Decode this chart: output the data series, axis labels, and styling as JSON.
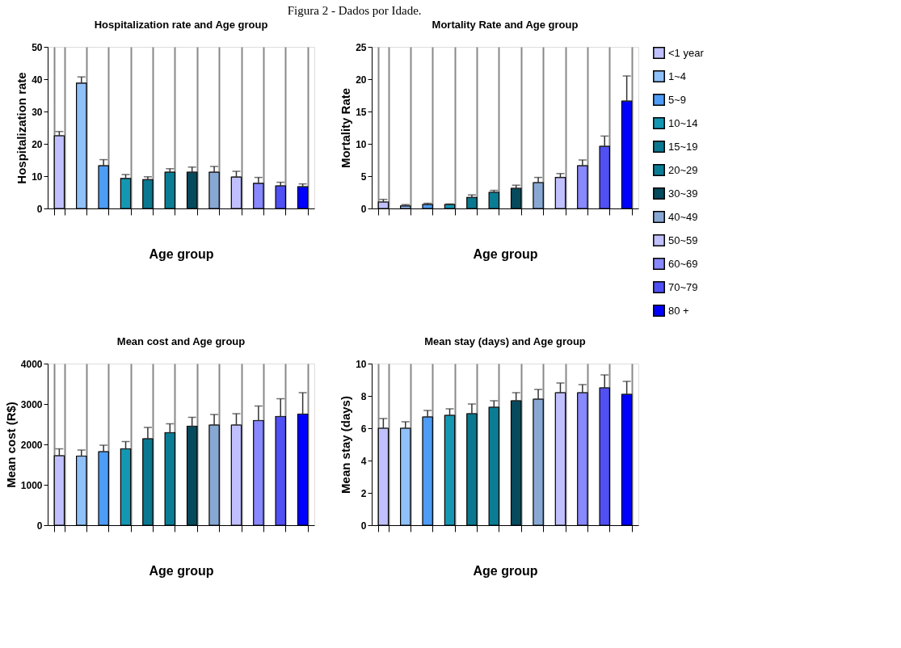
{
  "chart_data": [
    {
      "type": "bar",
      "title": "Hospitalization rate and Age group",
      "xlabel": "Age group",
      "ylabel": "Hospitalization rate",
      "annotations": [
        "Figura 2 - Dados por Idade."
      ],
      "categories": [
        null,
        null,
        null,
        null,
        null,
        null,
        null,
        null,
        null,
        null,
        null,
        null
      ],
      "series": [
        {
          "color": "#c0c0ff",
          "values": [
            22.5,
            null,
            null,
            null,
            null,
            null,
            null,
            null,
            null,
            null,
            null,
            null
          ],
          "errors": [
            [
              22.5,
              23.8
            ],
            null,
            null,
            null,
            null,
            null,
            null,
            null,
            null,
            null,
            null,
            null
          ]
        },
        {
          "color": "#90c0f8",
          "values": [
            null,
            38.8,
            null,
            null,
            null,
            null,
            null,
            null,
            null,
            null,
            null,
            null
          ],
          "errors": [
            null,
            [
              38.8,
              40.7
            ],
            null,
            null,
            null,
            null,
            null,
            null,
            null,
            null,
            null,
            null
          ]
        },
        {
          "color": "#4d9cf5",
          "values": [
            null,
            null,
            13.2,
            null,
            null,
            null,
            null,
            null,
            null,
            null,
            null,
            null
          ],
          "errors": [
            null,
            null,
            [
              13.2,
              15.1
            ],
            null,
            null,
            null,
            null,
            null,
            null,
            null,
            null,
            null
          ]
        },
        {
          "color": "#1497b3",
          "values": [
            null,
            null,
            null,
            9.3,
            null,
            null,
            null,
            null,
            null,
            null,
            null,
            null
          ],
          "errors": [
            null,
            null,
            null,
            [
              9.3,
              10.5
            ],
            null,
            null,
            null,
            null,
            null,
            null,
            null,
            null
          ]
        },
        {
          "color": "#0a7890",
          "values": [
            null,
            null,
            null,
            null,
            8.9,
            null,
            null,
            null,
            null,
            null,
            null,
            null
          ],
          "errors": [
            null,
            null,
            null,
            null,
            [
              8.9,
              9.8
            ],
            null,
            null,
            null,
            null,
            null,
            null,
            null
          ]
        },
        {
          "color": "#0a7d94",
          "values": [
            null,
            null,
            null,
            null,
            null,
            11.2,
            null,
            null,
            null,
            null,
            null,
            null
          ],
          "errors": [
            null,
            null,
            null,
            null,
            null,
            [
              11.2,
              12.3
            ],
            null,
            null,
            null,
            null,
            null,
            null
          ]
        },
        {
          "color": "#064a5e",
          "values": [
            null,
            null,
            null,
            null,
            null,
            null,
            11.2,
            null,
            null,
            null,
            null,
            null
          ],
          "errors": [
            null,
            null,
            null,
            null,
            null,
            null,
            [
              11.2,
              12.8
            ],
            null,
            null,
            null,
            null,
            null
          ]
        },
        {
          "color": "#88a8d4",
          "values": [
            null,
            null,
            null,
            null,
            null,
            null,
            null,
            11.2,
            null,
            null,
            null,
            null
          ],
          "errors": [
            null,
            null,
            null,
            null,
            null,
            null,
            null,
            [
              11.2,
              13.0
            ],
            null,
            null,
            null,
            null
          ]
        },
        {
          "color": "#c0c0ff",
          "values": [
            null,
            null,
            null,
            null,
            null,
            null,
            null,
            null,
            9.7,
            null,
            null,
            null
          ],
          "errors": [
            null,
            null,
            null,
            null,
            null,
            null,
            null,
            null,
            [
              9.7,
              11.5
            ],
            null,
            null,
            null
          ]
        },
        {
          "color": "#8888ff",
          "values": [
            null,
            null,
            null,
            null,
            null,
            null,
            null,
            null,
            null,
            7.8,
            null,
            null
          ],
          "errors": [
            null,
            null,
            null,
            null,
            null,
            null,
            null,
            null,
            null,
            [
              7.8,
              9.6
            ],
            null,
            null
          ]
        },
        {
          "color": "#5050f5",
          "values": [
            null,
            null,
            null,
            null,
            null,
            null,
            null,
            null,
            null,
            null,
            7.0,
            null
          ],
          "errors": [
            null,
            null,
            null,
            null,
            null,
            null,
            null,
            null,
            null,
            null,
            [
              7.0,
              8.1
            ],
            null
          ]
        },
        {
          "color": "#0000ff",
          "values": [
            null,
            null,
            null,
            null,
            null,
            null,
            null,
            null,
            null,
            null,
            null,
            6.7
          ],
          "errors": [
            null,
            null,
            null,
            null,
            null,
            null,
            null,
            null,
            null,
            null,
            null,
            [
              6.7,
              7.6
            ]
          ]
        }
      ],
      "ylim": [
        0,
        50
      ],
      "yticks": [
        0,
        10,
        20,
        30,
        40,
        50
      ],
      "grid": "x",
      "tick_labels": "y"
    },
    {
      "type": "bar",
      "title": "Mortality Rate and Age group",
      "xlabel": "Age group",
      "ylabel": "Mortality Rate",
      "categories": [
        null,
        null,
        null,
        null,
        null,
        null,
        null,
        null,
        null,
        null,
        null,
        null
      ],
      "series": [
        {
          "name": "<1 year",
          "color": "#c0c0ff",
          "values": [
            1.0,
            null,
            null,
            null,
            null,
            null,
            null,
            null,
            null,
            null,
            null,
            null
          ],
          "errors": [
            [
              1.0,
              1.4
            ],
            null,
            null,
            null,
            null,
            null,
            null,
            null,
            null,
            null,
            null,
            null
          ]
        },
        {
          "name": "1~4",
          "color": "#90c0f8",
          "values": [
            null,
            0.4,
            null,
            null,
            null,
            null,
            null,
            null,
            null,
            null,
            null,
            null
          ],
          "errors": [
            null,
            [
              0.4,
              0.6
            ],
            null,
            null,
            null,
            null,
            null,
            null,
            null,
            null,
            null,
            null
          ]
        },
        {
          "name": "5~9",
          "color": "#4d9cf5",
          "values": [
            null,
            null,
            0.6,
            null,
            null,
            null,
            null,
            null,
            null,
            null,
            null,
            null
          ],
          "errors": [
            null,
            null,
            [
              0.6,
              0.8
            ],
            null,
            null,
            null,
            null,
            null,
            null,
            null,
            null,
            null
          ]
        },
        {
          "name": "10~14",
          "color": "#1497b3",
          "values": [
            null,
            null,
            null,
            0.6,
            null,
            null,
            null,
            null,
            null,
            null,
            null,
            null
          ],
          "errors": [
            null,
            null,
            null,
            [
              0.6,
              0.7
            ],
            null,
            null,
            null,
            null,
            null,
            null,
            null,
            null
          ]
        },
        {
          "name": "15~19",
          "color": "#0a7890",
          "values": [
            null,
            null,
            null,
            null,
            1.7,
            null,
            null,
            null,
            null,
            null,
            null,
            null
          ],
          "errors": [
            null,
            null,
            null,
            null,
            [
              1.7,
              2.1
            ],
            null,
            null,
            null,
            null,
            null,
            null,
            null
          ]
        },
        {
          "name": "20~29",
          "color": "#0a7d94",
          "values": [
            null,
            null,
            null,
            null,
            null,
            2.5,
            null,
            null,
            null,
            null,
            null,
            null
          ],
          "errors": [
            null,
            null,
            null,
            null,
            null,
            [
              2.5,
              2.8
            ],
            null,
            null,
            null,
            null,
            null,
            null
          ]
        },
        {
          "name": "30~39",
          "color": "#064a5e",
          "values": [
            null,
            null,
            null,
            null,
            null,
            null,
            3.1,
            null,
            null,
            null,
            null,
            null
          ],
          "errors": [
            null,
            null,
            null,
            null,
            null,
            null,
            [
              3.1,
              3.6
            ],
            null,
            null,
            null,
            null,
            null
          ]
        },
        {
          "name": "40~49",
          "color": "#88a8d4",
          "values": [
            null,
            null,
            null,
            null,
            null,
            null,
            null,
            4.0,
            null,
            null,
            null,
            null
          ],
          "errors": [
            null,
            null,
            null,
            null,
            null,
            null,
            null,
            [
              4.0,
              4.8
            ],
            null,
            null,
            null,
            null
          ]
        },
        {
          "name": "50~59",
          "color": "#c0c0ff",
          "values": [
            null,
            null,
            null,
            null,
            null,
            null,
            null,
            null,
            4.8,
            null,
            null,
            null
          ],
          "errors": [
            null,
            null,
            null,
            null,
            null,
            null,
            null,
            null,
            [
              4.8,
              5.4
            ],
            null,
            null,
            null
          ]
        },
        {
          "name": "60~69",
          "color": "#8888ff",
          "values": [
            null,
            null,
            null,
            null,
            null,
            null,
            null,
            null,
            null,
            6.6,
            null,
            null
          ],
          "errors": [
            null,
            null,
            null,
            null,
            null,
            null,
            null,
            null,
            null,
            [
              6.6,
              7.5
            ],
            null,
            null
          ]
        },
        {
          "name": "70~79",
          "color": "#5050f5",
          "values": [
            null,
            null,
            null,
            null,
            null,
            null,
            null,
            null,
            null,
            null,
            9.6,
            null
          ],
          "errors": [
            null,
            null,
            null,
            null,
            null,
            null,
            null,
            null,
            null,
            null,
            [
              9.6,
              11.2
            ],
            null
          ]
        },
        {
          "name": "80 +",
          "color": "#0000ff",
          "values": [
            null,
            null,
            null,
            null,
            null,
            null,
            null,
            null,
            null,
            null,
            null,
            16.6
          ],
          "errors": [
            null,
            null,
            null,
            null,
            null,
            null,
            null,
            null,
            null,
            null,
            null,
            [
              16.6,
              20.5
            ]
          ]
        }
      ],
      "ylim": [
        0,
        25
      ],
      "yticks": [
        0,
        5,
        10,
        15,
        20,
        25
      ],
      "grid": "x",
      "tick_labels": "y",
      "legend": "right"
    },
    {
      "type": "bar",
      "title": "Mean cost and Age group",
      "xlabel": "Age group",
      "ylabel": "Mean cost (R$)",
      "categories": [
        null,
        null,
        null,
        null,
        null,
        null,
        null,
        null,
        null,
        null,
        null,
        null
      ],
      "series": [
        {
          "color": "#c0c0ff",
          "values": [
            1720,
            null,
            null,
            null,
            null,
            null,
            null,
            null,
            null,
            null,
            null,
            null
          ],
          "errors": [
            [
              1720,
              1890
            ],
            null,
            null,
            null,
            null,
            null,
            null,
            null,
            null,
            null,
            null,
            null
          ]
        },
        {
          "color": "#90c0f8",
          "values": [
            null,
            1710,
            null,
            null,
            null,
            null,
            null,
            null,
            null,
            null,
            null,
            null
          ],
          "errors": [
            null,
            [
              1710,
              1860
            ],
            null,
            null,
            null,
            null,
            null,
            null,
            null,
            null,
            null,
            null
          ]
        },
        {
          "color": "#4d9cf5",
          "values": [
            null,
            null,
            1820,
            null,
            null,
            null,
            null,
            null,
            null,
            null,
            null,
            null
          ],
          "errors": [
            null,
            null,
            [
              1820,
              1980
            ],
            null,
            null,
            null,
            null,
            null,
            null,
            null,
            null,
            null
          ]
        },
        {
          "color": "#1497b3",
          "values": [
            null,
            null,
            null,
            1890,
            null,
            null,
            null,
            null,
            null,
            null,
            null,
            null
          ],
          "errors": [
            null,
            null,
            null,
            [
              1890,
              2070
            ],
            null,
            null,
            null,
            null,
            null,
            null,
            null,
            null
          ]
        },
        {
          "color": "#0a7890",
          "values": [
            null,
            null,
            null,
            null,
            2140,
            null,
            null,
            null,
            null,
            null,
            null,
            null
          ],
          "errors": [
            null,
            null,
            null,
            null,
            [
              2140,
              2420
            ],
            null,
            null,
            null,
            null,
            null,
            null,
            null
          ]
        },
        {
          "color": "#0a7d94",
          "values": [
            null,
            null,
            null,
            null,
            null,
            2290,
            null,
            null,
            null,
            null,
            null,
            null
          ],
          "errors": [
            null,
            null,
            null,
            null,
            null,
            [
              2290,
              2510
            ],
            null,
            null,
            null,
            null,
            null,
            null
          ]
        },
        {
          "color": "#064a5e",
          "values": [
            null,
            null,
            null,
            null,
            null,
            null,
            2450,
            null,
            null,
            null,
            null,
            null
          ],
          "errors": [
            null,
            null,
            null,
            null,
            null,
            null,
            [
              2450,
              2670
            ],
            null,
            null,
            null,
            null,
            null
          ]
        },
        {
          "color": "#88a8d4",
          "values": [
            null,
            null,
            null,
            null,
            null,
            null,
            null,
            2480,
            null,
            null,
            null,
            null
          ],
          "errors": [
            null,
            null,
            null,
            null,
            null,
            null,
            null,
            [
              2480,
              2740
            ],
            null,
            null,
            null,
            null
          ]
        },
        {
          "color": "#c0c0ff",
          "values": [
            null,
            null,
            null,
            null,
            null,
            null,
            null,
            null,
            2480,
            null,
            null,
            null
          ],
          "errors": [
            null,
            null,
            null,
            null,
            null,
            null,
            null,
            null,
            [
              2480,
              2760
            ],
            null,
            null,
            null
          ]
        },
        {
          "color": "#8888ff",
          "values": [
            null,
            null,
            null,
            null,
            null,
            null,
            null,
            null,
            null,
            2590,
            null,
            null
          ],
          "errors": [
            null,
            null,
            null,
            null,
            null,
            null,
            null,
            null,
            null,
            [
              2590,
              2950
            ],
            null,
            null
          ]
        },
        {
          "color": "#5050f5",
          "values": [
            null,
            null,
            null,
            null,
            null,
            null,
            null,
            null,
            null,
            null,
            2690,
            null
          ],
          "errors": [
            null,
            null,
            null,
            null,
            null,
            null,
            null,
            null,
            null,
            null,
            [
              2690,
              3130
            ],
            null
          ]
        },
        {
          "color": "#0000ff",
          "values": [
            null,
            null,
            null,
            null,
            null,
            null,
            null,
            null,
            null,
            null,
            null,
            2750
          ],
          "errors": [
            null,
            null,
            null,
            null,
            null,
            null,
            null,
            null,
            null,
            null,
            null,
            [
              2750,
              3280
            ]
          ]
        }
      ],
      "ylim": [
        0,
        4000
      ],
      "yticks": [
        0,
        1000,
        2000,
        3000,
        4000
      ],
      "grid": "x",
      "tick_labels": "y"
    },
    {
      "type": "bar",
      "title": "Mean stay (days) and Age group",
      "xlabel": "Age group",
      "ylabel": "Mean stay (days)",
      "categories": [
        null,
        null,
        null,
        null,
        null,
        null,
        null,
        null,
        null,
        null,
        null,
        null
      ],
      "series": [
        {
          "color": "#c0c0ff",
          "values": [
            6.0,
            null,
            null,
            null,
            null,
            null,
            null,
            null,
            null,
            null,
            null,
            null
          ],
          "errors": [
            [
              6.0,
              6.6
            ],
            null,
            null,
            null,
            null,
            null,
            null,
            null,
            null,
            null,
            null,
            null
          ]
        },
        {
          "color": "#90c0f8",
          "values": [
            null,
            6.0,
            null,
            null,
            null,
            null,
            null,
            null,
            null,
            null,
            null,
            null
          ],
          "errors": [
            null,
            [
              6.0,
              6.4
            ],
            null,
            null,
            null,
            null,
            null,
            null,
            null,
            null,
            null,
            null
          ]
        },
        {
          "color": "#4d9cf5",
          "values": [
            null,
            null,
            6.7,
            null,
            null,
            null,
            null,
            null,
            null,
            null,
            null,
            null
          ],
          "errors": [
            null,
            null,
            [
              6.7,
              7.1
            ],
            null,
            null,
            null,
            null,
            null,
            null,
            null,
            null,
            null
          ]
        },
        {
          "color": "#1497b3",
          "values": [
            null,
            null,
            null,
            6.8,
            null,
            null,
            null,
            null,
            null,
            null,
            null,
            null
          ],
          "errors": [
            null,
            null,
            null,
            [
              6.8,
              7.2
            ],
            null,
            null,
            null,
            null,
            null,
            null,
            null,
            null
          ]
        },
        {
          "color": "#0a7890",
          "values": [
            null,
            null,
            null,
            null,
            6.9,
            null,
            null,
            null,
            null,
            null,
            null,
            null
          ],
          "errors": [
            null,
            null,
            null,
            null,
            [
              6.9,
              7.5
            ],
            null,
            null,
            null,
            null,
            null,
            null,
            null
          ]
        },
        {
          "color": "#0a7d94",
          "values": [
            null,
            null,
            null,
            null,
            null,
            7.3,
            null,
            null,
            null,
            null,
            null,
            null
          ],
          "errors": [
            null,
            null,
            null,
            null,
            null,
            [
              7.3,
              7.7
            ],
            null,
            null,
            null,
            null,
            null,
            null
          ]
        },
        {
          "color": "#064a5e",
          "values": [
            null,
            null,
            null,
            null,
            null,
            null,
            7.7,
            null,
            null,
            null,
            null,
            null
          ],
          "errors": [
            null,
            null,
            null,
            null,
            null,
            null,
            [
              7.7,
              8.2
            ],
            null,
            null,
            null,
            null,
            null
          ]
        },
        {
          "color": "#88a8d4",
          "values": [
            null,
            null,
            null,
            null,
            null,
            null,
            null,
            7.8,
            null,
            null,
            null,
            null
          ],
          "errors": [
            null,
            null,
            null,
            null,
            null,
            null,
            null,
            [
              7.8,
              8.4
            ],
            null,
            null,
            null,
            null
          ]
        },
        {
          "color": "#c0c0ff",
          "values": [
            null,
            null,
            null,
            null,
            null,
            null,
            null,
            null,
            8.2,
            null,
            null,
            null
          ],
          "errors": [
            null,
            null,
            null,
            null,
            null,
            null,
            null,
            null,
            [
              8.2,
              8.8
            ],
            null,
            null,
            null
          ]
        },
        {
          "color": "#8888ff",
          "values": [
            null,
            null,
            null,
            null,
            null,
            null,
            null,
            null,
            null,
            8.2,
            null,
            null
          ],
          "errors": [
            null,
            null,
            null,
            null,
            null,
            null,
            null,
            null,
            null,
            [
              8.2,
              8.7
            ],
            null,
            null
          ]
        },
        {
          "color": "#5050f5",
          "values": [
            null,
            null,
            null,
            null,
            null,
            null,
            null,
            null,
            null,
            null,
            8.5,
            null
          ],
          "errors": [
            null,
            null,
            null,
            null,
            null,
            null,
            null,
            null,
            null,
            null,
            [
              8.5,
              9.3
            ],
            null
          ]
        },
        {
          "color": "#0000ff",
          "values": [
            null,
            null,
            null,
            null,
            null,
            null,
            null,
            null,
            null,
            null,
            null,
            8.1
          ],
          "errors": [
            null,
            null,
            null,
            null,
            null,
            null,
            null,
            null,
            null,
            null,
            null,
            [
              8.1,
              8.9
            ]
          ]
        }
      ],
      "ylim": [
        0,
        10
      ],
      "yticks": [
        0,
        2,
        4,
        6,
        8,
        10
      ],
      "grid": "x",
      "tick_labels": "y"
    }
  ]
}
